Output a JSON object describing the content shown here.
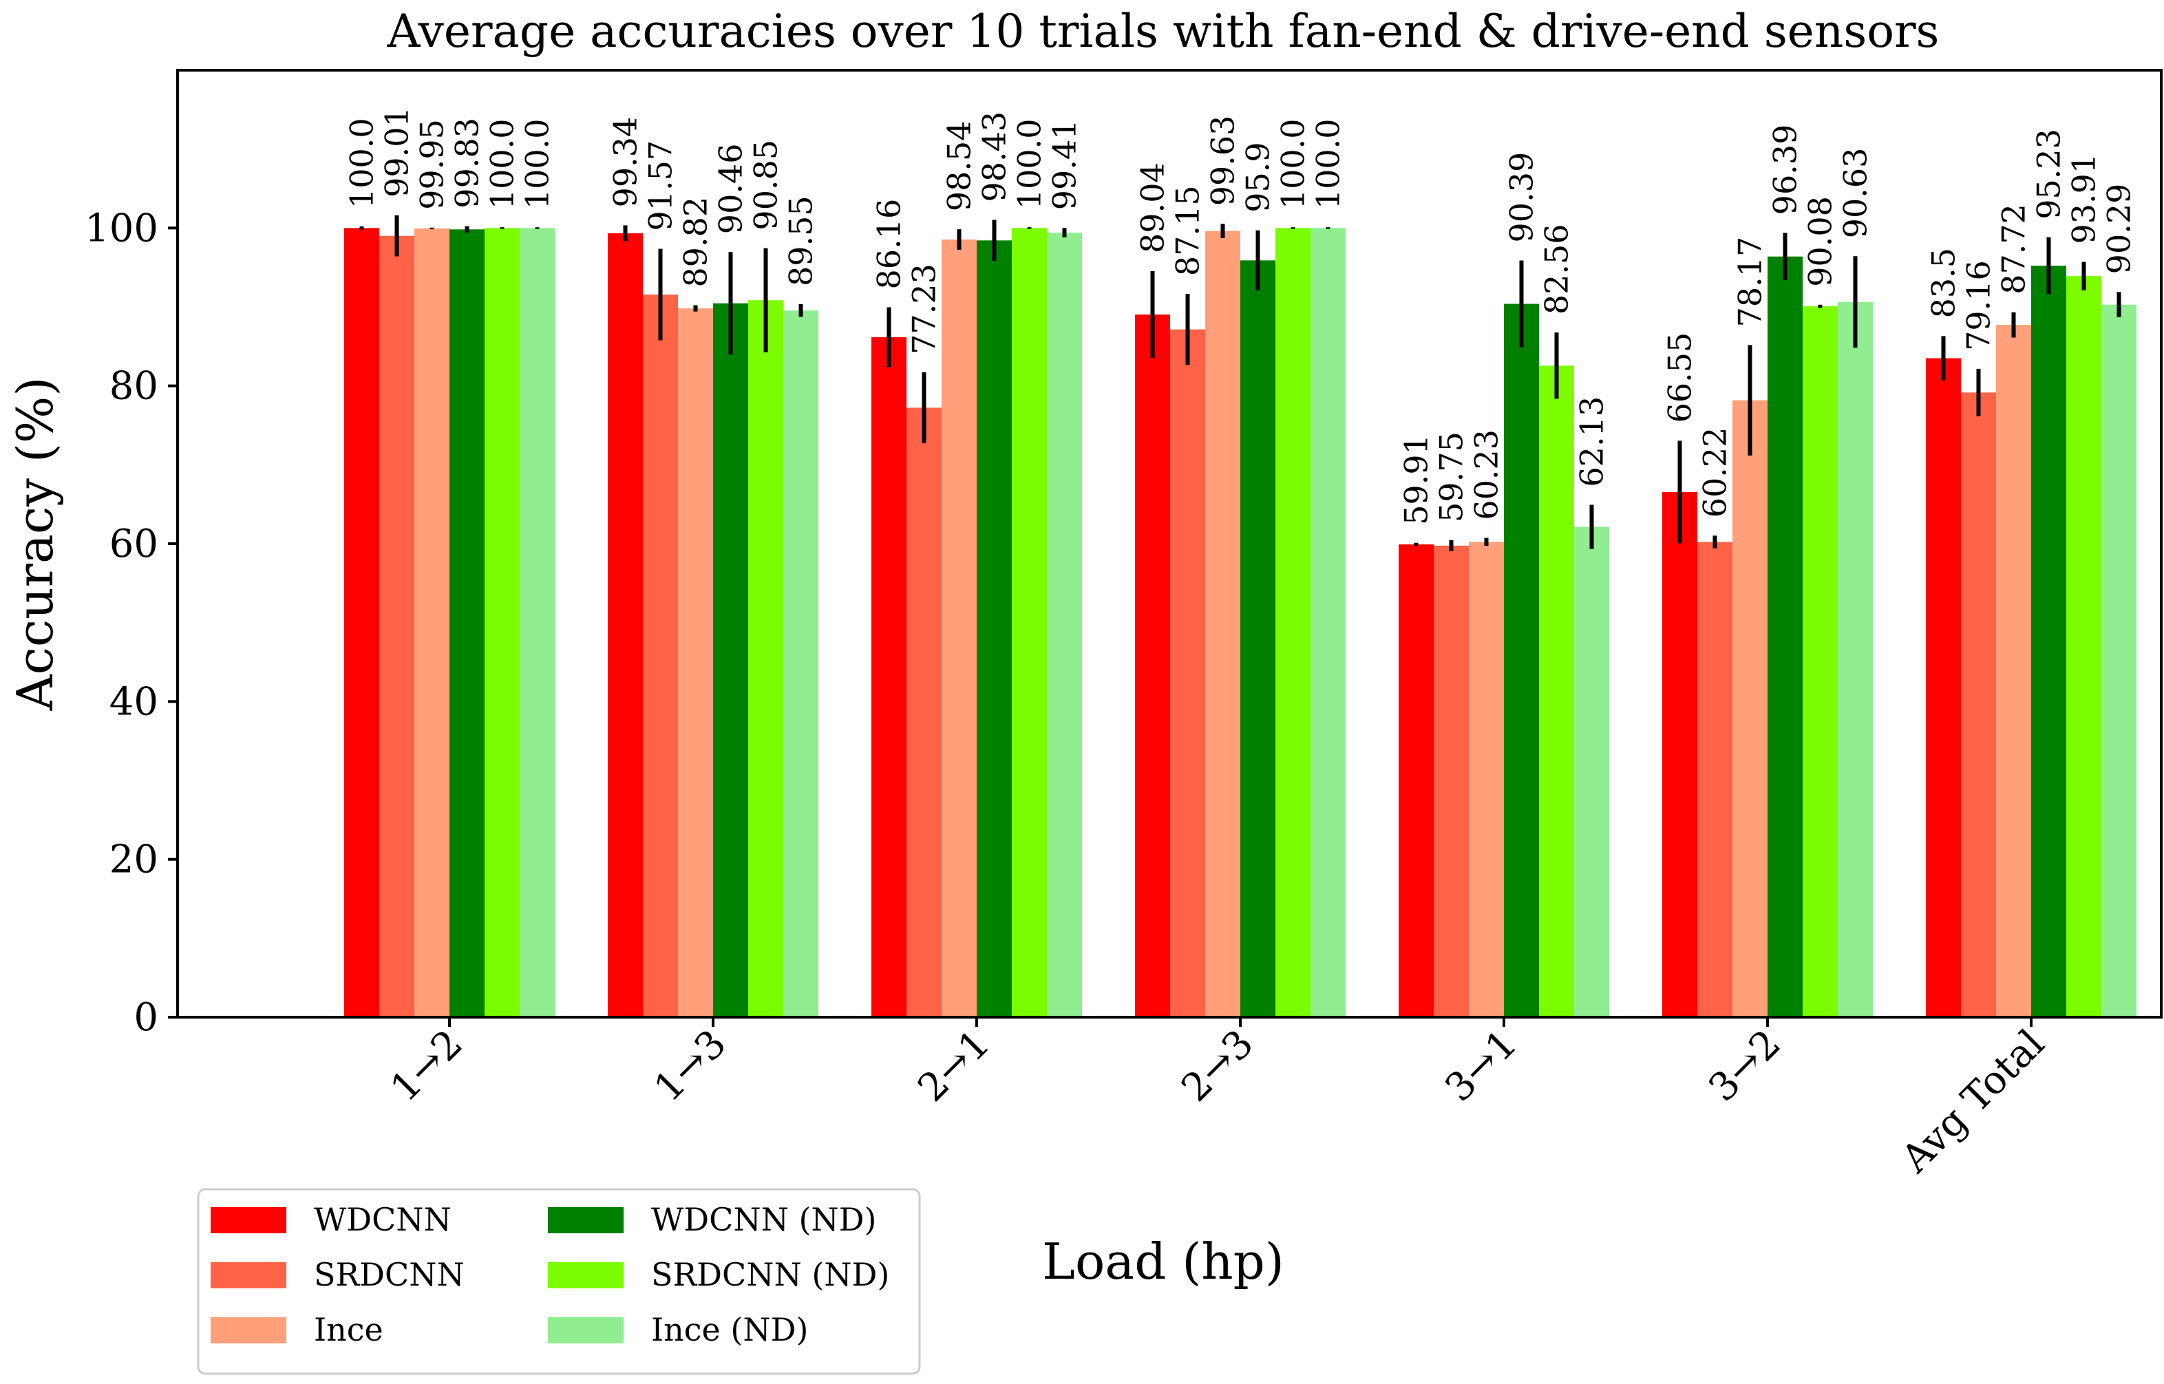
{
  "chart_data": {
    "type": "bar",
    "title": "Average accuracies over 10 trials with fan-end & drive-end sensors",
    "xlabel": "Load (hp)",
    "ylabel": "Accuracy (%)",
    "ylim": [
      0,
      120
    ],
    "yticks": [
      "0",
      "20",
      "40",
      "60",
      "80",
      "100"
    ],
    "categories": [
      "1→2",
      "1→3",
      "2→1",
      "2→3",
      "3→1",
      "3→2",
      "Avg Total"
    ],
    "legend_position": "below-left",
    "series": [
      {
        "name": "WDCNN",
        "color": "#ff0000",
        "values": [
          100.0,
          99.34,
          86.16,
          89.04,
          59.91,
          66.55,
          83.5
        ],
        "labels": [
          "100.0",
          "99.34",
          "86.16",
          "89.04",
          "59.91",
          "66.55",
          "83.5"
        ],
        "errors": [
          0.2,
          1.0,
          3.8,
          5.5,
          0.2,
          6.5,
          2.8
        ]
      },
      {
        "name": "SRDCNN",
        "color": "#ff6347",
        "values": [
          99.01,
          91.57,
          77.23,
          87.15,
          59.75,
          60.22,
          79.16
        ],
        "labels": [
          "99.01",
          "91.57",
          "77.23",
          "87.15",
          "59.75",
          "60.22",
          "79.16"
        ],
        "errors": [
          2.6,
          5.8,
          4.5,
          4.5,
          0.7,
          0.8,
          3.0
        ]
      },
      {
        "name": "Ince",
        "color": "#ffa07a",
        "values": [
          99.95,
          89.82,
          98.54,
          99.63,
          60.23,
          78.17,
          87.72
        ],
        "labels": [
          "99.95",
          "89.82",
          "98.54",
          "99.63",
          "60.23",
          "78.17",
          "87.72"
        ],
        "errors": [
          0.1,
          0.4,
          1.3,
          0.9,
          0.5,
          7.0,
          1.6
        ]
      },
      {
        "name": "WDCNN (ND)",
        "color": "#008000",
        "values": [
          99.83,
          90.46,
          98.43,
          95.9,
          90.39,
          96.39,
          95.23
        ],
        "labels": [
          "99.83",
          "90.46",
          "98.43",
          "95.9",
          "90.39",
          "96.39",
          "95.23"
        ],
        "errors": [
          0.4,
          6.5,
          2.6,
          3.8,
          5.5,
          3.0,
          3.6
        ]
      },
      {
        "name": "SRDCNN (ND)",
        "color": "#7cfc00",
        "values": [
          100.0,
          90.85,
          100.0,
          100.0,
          82.56,
          90.08,
          93.91
        ],
        "labels": [
          "100.0",
          "90.85",
          "100.0",
          "100.0",
          "82.56",
          "90.08",
          "93.91"
        ],
        "errors": [
          0.1,
          6.6,
          0.1,
          0.1,
          4.2,
          0.2,
          1.8
        ]
      },
      {
        "name": "Ince (ND)",
        "color": "#90ee90",
        "values": [
          100.0,
          89.55,
          99.41,
          100.0,
          62.13,
          90.63,
          90.29
        ],
        "labels": [
          "100.0",
          "89.55",
          "99.41",
          "100.0",
          "62.13",
          "90.63",
          "90.29"
        ],
        "errors": [
          0.1,
          0.8,
          0.6,
          0.1,
          2.8,
          5.8,
          1.6
        ]
      }
    ]
  }
}
